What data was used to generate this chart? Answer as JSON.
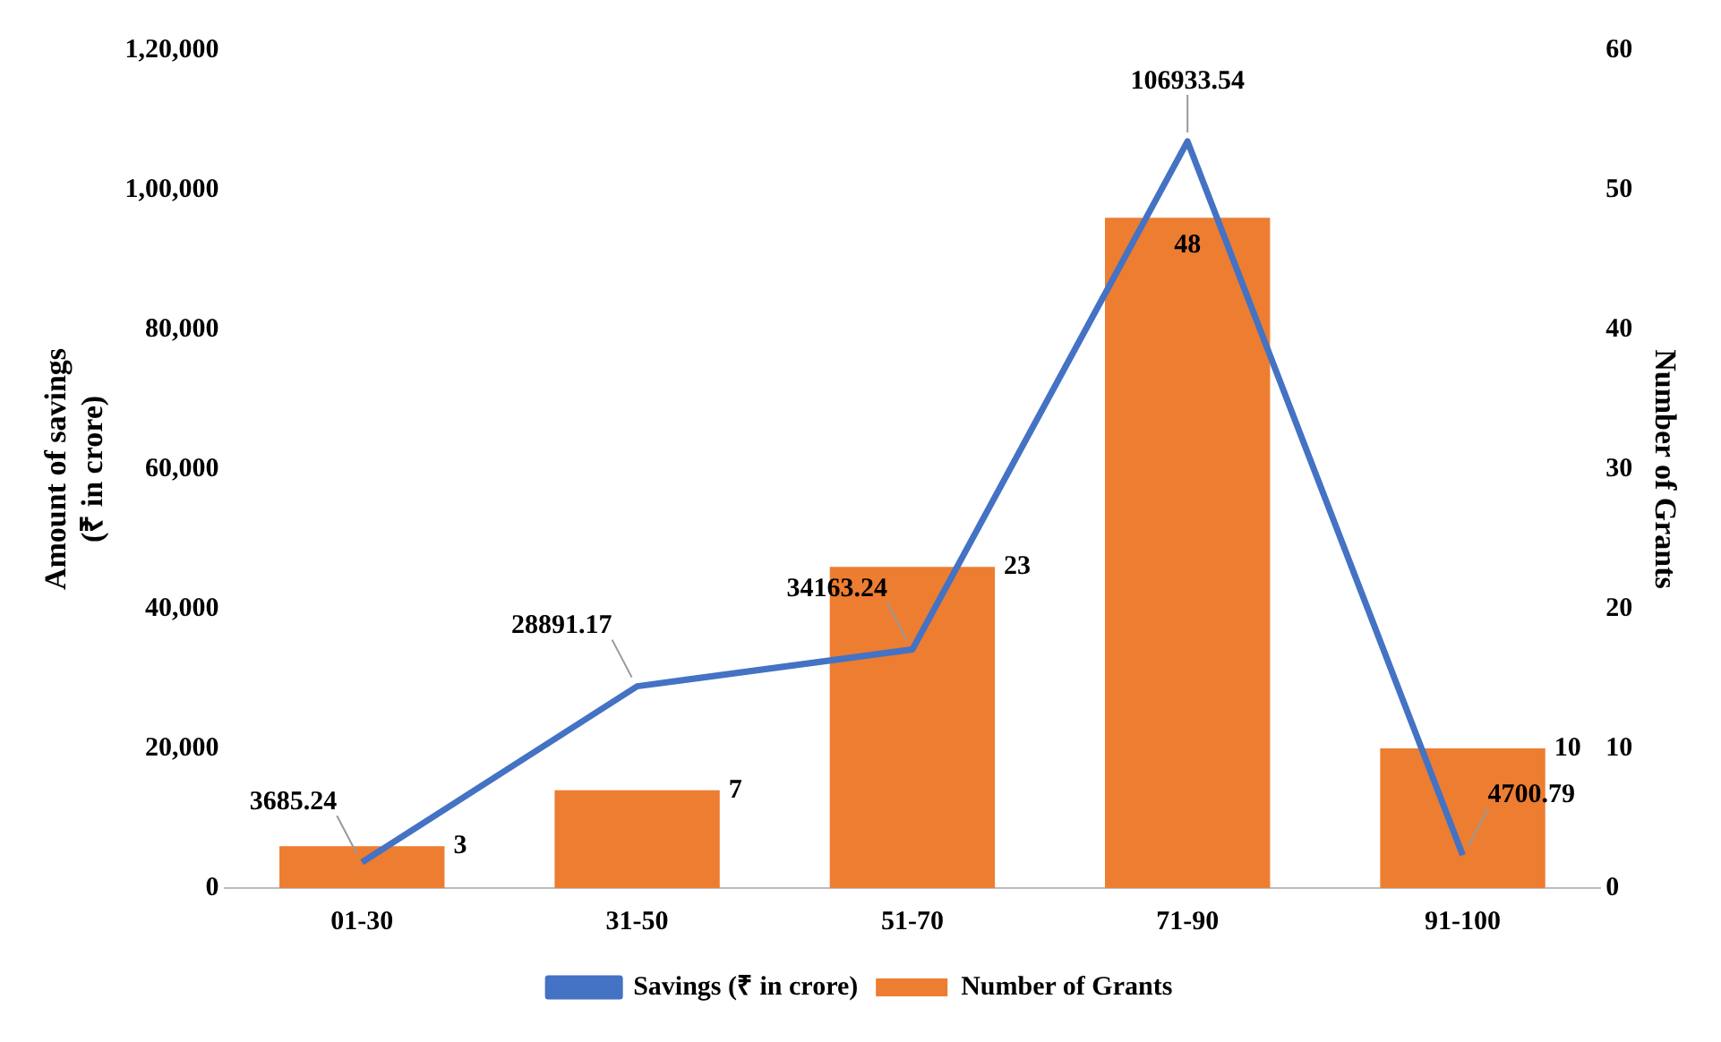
{
  "chart_data": {
    "type": "bar",
    "categories": [
      "01-30",
      "31-50",
      "51-70",
      "71-90",
      "91-100"
    ],
    "series": [
      {
        "name": "Number of Grants",
        "axis": "y2",
        "color": "#ed7d31",
        "values": [
          3,
          7,
          23,
          48,
          10
        ]
      },
      {
        "name": "Savings (₹ in crore)",
        "type": "line",
        "axis": "y",
        "color": "#4472c4",
        "values": [
          3685.24,
          28891.17,
          34163.24,
          106933.54,
          4700.79
        ]
      }
    ],
    "ylabel": "Amount of savings\n(₹ in crore)",
    "y2label": "Number of Grants",
    "ylim": [
      0,
      120000
    ],
    "yticks": [
      0,
      {
        "value": 20000,
        "label": "20,000"
      },
      {
        "value": 40000,
        "label": "40,000"
      },
      {
        "value": 60000,
        "label": "60,000"
      },
      {
        "value": 80000,
        "label": "80,000"
      },
      {
        "value": 100000,
        "label": "1,00,000"
      },
      {
        "value": 120000,
        "label": "1,20,000"
      }
    ],
    "y2lim": [
      0,
      60
    ],
    "y2ticks": [
      0,
      10,
      20,
      30,
      40,
      50,
      60
    ],
    "data_labels": true,
    "legend": "bottom",
    "grid": false,
    "marker": "none",
    "line_style": "solid"
  }
}
